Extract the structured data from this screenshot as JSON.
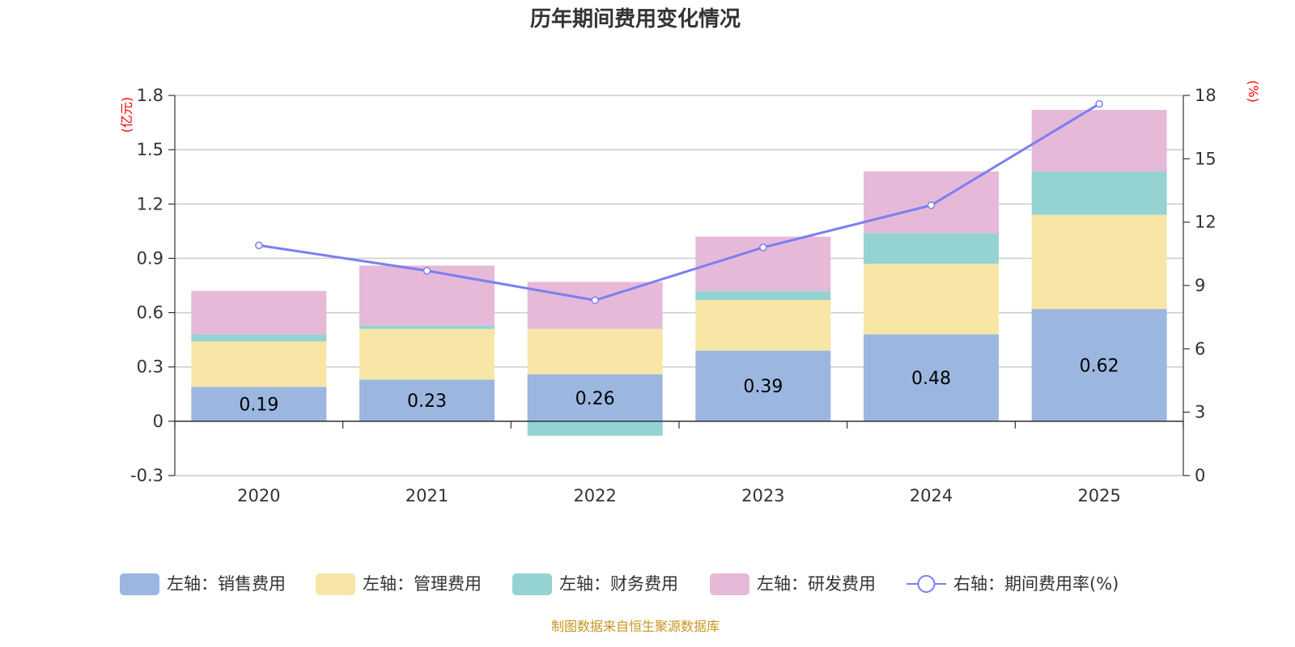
{
  "chart_data": {
    "type": "bar",
    "title": "历年期间费用变化情况",
    "categories": [
      "2020",
      "2021",
      "2022",
      "2023",
      "2024",
      "2025"
    ],
    "left_axis": {
      "unit": "(亿元)",
      "ylim": [
        -0.3,
        1.8
      ],
      "ticks": [
        "-0.3",
        "0",
        "0.3",
        "0.6",
        "0.9",
        "1.2",
        "1.5",
        "1.8"
      ]
    },
    "right_axis": {
      "unit": "(%)",
      "ylim": [
        0,
        18
      ],
      "ticks": [
        "0",
        "3",
        "6",
        "9",
        "12",
        "15",
        "18"
      ]
    },
    "series": [
      {
        "name": "左轴：销售费用",
        "type": "bar",
        "stack": true,
        "color": "#9bb7e0",
        "values": [
          0.19,
          0.23,
          0.26,
          0.39,
          0.48,
          0.62
        ],
        "labels": [
          "0.19",
          "0.23",
          "0.26",
          "0.39",
          "0.48",
          "0.62"
        ]
      },
      {
        "name": "左轴：管理费用",
        "type": "bar",
        "stack": true,
        "color": "#f8e6a7",
        "values": [
          0.25,
          0.28,
          0.25,
          0.28,
          0.39,
          0.52
        ]
      },
      {
        "name": "左轴：财务费用",
        "type": "bar",
        "stack": true,
        "color": "#95d3d3",
        "values": [
          0.04,
          0.02,
          -0.08,
          0.05,
          0.17,
          0.24
        ]
      },
      {
        "name": "左轴：研发费用",
        "type": "bar",
        "stack": true,
        "color": "#e7b9d9",
        "values": [
          0.24,
          0.33,
          0.26,
          0.3,
          0.34,
          0.34
        ]
      },
      {
        "name": "右轴：期间费用率(%)",
        "type": "line",
        "axis": "right",
        "color": "#7b7ff0",
        "values": [
          10.9,
          9.7,
          8.3,
          10.8,
          12.8,
          17.6
        ]
      }
    ],
    "grid": true,
    "legend_position": "bottom"
  },
  "source_text": "制图数据来自恒生聚源数据库"
}
